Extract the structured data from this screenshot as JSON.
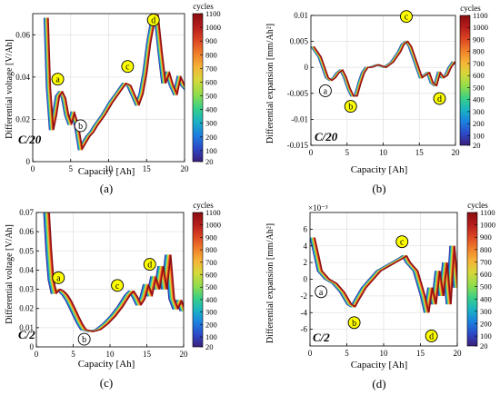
{
  "figure": {
    "cbar_title": "cycles",
    "cbar_ticks": [
      20,
      100,
      200,
      300,
      400,
      500,
      600,
      700,
      800,
      900,
      1000,
      1100
    ],
    "cycle_colors": [
      "#3b1f7a",
      "#2c49c8",
      "#1c7fe0",
      "#19b2c4",
      "#38cf88",
      "#8edd4c",
      "#d6d83a",
      "#f6b338",
      "#f07e2a",
      "#dc4522",
      "#b51d1c",
      "#8a0d10"
    ],
    "marker_fill": "#ffff00"
  },
  "chart_data": [
    {
      "type": "line",
      "panel_label": "(a)",
      "c_rate": "C/20",
      "xlabel": "Capacity [Ah]",
      "ylabel": "Differential voltage [V/Ah]",
      "xlim": [
        0,
        20
      ],
      "ylim": [
        0,
        0.07
      ],
      "xticks": [
        0,
        5,
        10,
        15,
        20
      ],
      "yticks": [
        0,
        0.02,
        0.04,
        0.06
      ],
      "ytick_labels": [
        "0",
        "0.02",
        "0.04",
        "0.06"
      ],
      "y_multiplier": "",
      "grid": true,
      "cycles": [
        20,
        100,
        200,
        300,
        400,
        500,
        600,
        700,
        800,
        900,
        1000,
        1100
      ],
      "base_curve": {
        "x": [
          1.5,
          1.8,
          2.2,
          2.6,
          3.0,
          3.4,
          3.8,
          4.2,
          4.6,
          5.0,
          5.5,
          6.0,
          6.5,
          7.0,
          7.5,
          8.0,
          9.0,
          10.0,
          11.0,
          11.8,
          12.4,
          13.0,
          13.5,
          14.0,
          14.5,
          15.0,
          15.5,
          16.0,
          16.5,
          17.0,
          17.5,
          18.0,
          18.5,
          19.0,
          19.5,
          20.0
        ],
        "y": [
          0.068,
          0.035,
          0.015,
          0.022,
          0.031,
          0.033,
          0.03,
          0.022,
          0.018,
          0.023,
          0.017,
          0.006,
          0.009,
          0.012,
          0.014,
          0.017,
          0.022,
          0.028,
          0.033,
          0.037,
          0.036,
          0.031,
          0.027,
          0.032,
          0.042,
          0.056,
          0.066,
          0.069,
          0.052,
          0.037,
          0.042,
          0.036,
          0.032,
          0.04,
          0.036,
          0.034
        ]
      },
      "x_shift_per_cycle": [
        0,
        0.05,
        0.1,
        0.15,
        0.2,
        0.25,
        0.3,
        0.35,
        0.4,
        0.45,
        0.5,
        0.55
      ],
      "markers": [
        {
          "label": "a",
          "x": 3.3,
          "y": 0.039,
          "filled": true
        },
        {
          "label": "b",
          "x": 6.3,
          "y": 0.017,
          "filled": false
        },
        {
          "label": "c",
          "x": 12.5,
          "y": 0.045,
          "filled": true
        },
        {
          "label": "d",
          "x": 15.9,
          "y": 0.067,
          "filled": true
        }
      ]
    },
    {
      "type": "line",
      "panel_label": "(b)",
      "c_rate": "C/20",
      "xlabel": "Capacity [Ah]",
      "ylabel": "Differential expansion [mm/Ah²]",
      "xlim": [
        0,
        20
      ],
      "ylim": [
        -0.015,
        0.01
      ],
      "xticks": [
        0,
        5,
        10,
        15,
        20
      ],
      "yticks": [
        -0.015,
        -0.01,
        -0.005,
        0,
        0.005,
        0.01
      ],
      "ytick_labels": [
        "-0.015",
        "-0.01",
        "-0.005",
        "0",
        "0.005",
        "0.01"
      ],
      "y_multiplier": "",
      "grid": true,
      "cycles": [
        20,
        100,
        200,
        300,
        400,
        500,
        600,
        700,
        800,
        900,
        1000,
        1100
      ],
      "base_curve": {
        "x": [
          0,
          0.5,
          1.0,
          1.5,
          2.0,
          2.5,
          3.0,
          3.5,
          4.0,
          4.5,
          5.0,
          5.5,
          6.0,
          6.5,
          7.0,
          7.5,
          8.0,
          9.0,
          10.0,
          11.0,
          12.0,
          12.5,
          13.0,
          13.5,
          14.0,
          15.0,
          16.0,
          16.5,
          17.0,
          17.5,
          18.0,
          18.5,
          19.0,
          19.5,
          20.0
        ],
        "y": [
          0.004,
          0.003,
          0.002,
          0.0,
          -0.002,
          -0.0025,
          -0.002,
          -0.001,
          -0.0005,
          -0.002,
          -0.004,
          -0.0055,
          -0.0055,
          -0.003,
          -0.001,
          0.0,
          0.0,
          0.0005,
          0.0,
          0.001,
          0.003,
          0.0045,
          0.005,
          0.004,
          0.002,
          -0.002,
          -0.001,
          -0.003,
          -0.0035,
          -0.001,
          -0.002,
          -0.0015,
          0.0,
          0.001,
          0.0005
        ]
      },
      "x_shift_per_cycle": [
        0,
        0.04,
        0.08,
        0.12,
        0.16,
        0.2,
        0.24,
        0.28,
        0.32,
        0.36,
        0.4,
        0.44
      ],
      "markers": [
        {
          "label": "a",
          "x": 2.0,
          "y": -0.0045,
          "filled": false
        },
        {
          "label": "b",
          "x": 5.5,
          "y": -0.0075,
          "filled": true
        },
        {
          "label": "c",
          "x": 13.2,
          "y": 0.0098,
          "filled": true
        },
        {
          "label": "d",
          "x": 17.8,
          "y": -0.006,
          "filled": true
        }
      ]
    },
    {
      "type": "line",
      "panel_label": "(c)",
      "c_rate": "C/2",
      "xlabel": "Capacity [Ah]",
      "ylabel": "Differential voltage [V/Ah]",
      "xlim": [
        0,
        20
      ],
      "ylim": [
        0,
        0.07
      ],
      "xticks": [
        0,
        5,
        10,
        15,
        20
      ],
      "yticks": [
        0,
        0.01,
        0.02,
        0.03,
        0.04,
        0.05,
        0.06,
        0.07
      ],
      "ytick_labels": [
        "0",
        "0.01",
        "0.02",
        "0.03",
        "0.04",
        "0.05",
        "0.06",
        "0.07"
      ],
      "y_multiplier": "",
      "grid": true,
      "cycles": [
        20,
        100,
        200,
        300,
        400,
        500,
        600,
        700,
        800,
        900,
        1000,
        1100
      ],
      "base_curve": {
        "x": [
          1.0,
          1.3,
          1.6,
          2.0,
          2.5,
          3.0,
          3.5,
          4.0,
          4.5,
          5.0,
          5.5,
          6.0,
          7.0,
          8.0,
          9.0,
          10.0,
          11.0,
          12.0,
          12.5,
          13.0,
          13.5,
          14.0,
          14.5,
          15.0,
          15.5,
          16.0,
          16.5,
          17.0,
          17.5,
          18.0,
          18.5,
          19.0,
          19.5,
          20.0
        ],
        "y": [
          0.07,
          0.05,
          0.035,
          0.028,
          0.03,
          0.029,
          0.027,
          0.024,
          0.02,
          0.016,
          0.012,
          0.009,
          0.008,
          0.009,
          0.012,
          0.016,
          0.021,
          0.027,
          0.029,
          0.026,
          0.022,
          0.025,
          0.032,
          0.027,
          0.036,
          0.03,
          0.042,
          0.03,
          0.048,
          0.025,
          0.02,
          0.024,
          0.019,
          0.022
        ]
      },
      "x_shift_per_cycle": [
        0,
        0.07,
        0.14,
        0.21,
        0.28,
        0.35,
        0.42,
        0.49,
        0.56,
        0.63,
        0.7,
        0.77
      ],
      "markers": [
        {
          "label": "a",
          "x": 3.0,
          "y": 0.036,
          "filled": true
        },
        {
          "label": "b",
          "x": 6.5,
          "y": 0.004,
          "filled": false
        },
        {
          "label": "c",
          "x": 11.0,
          "y": 0.032,
          "filled": true
        },
        {
          "label": "d",
          "x": 15.4,
          "y": 0.043,
          "filled": true
        }
      ]
    },
    {
      "type": "line",
      "panel_label": "(d)",
      "c_rate": "C/2",
      "xlabel": "Capacity [Ah]",
      "ylabel": "Differential expansion [mm/Ah²]",
      "xlim": [
        0,
        20
      ],
      "ylim": [
        -0.008,
        0.008
      ],
      "xticks": [
        0,
        5,
        10,
        15,
        20
      ],
      "yticks": [
        -0.006,
        -0.004,
        -0.002,
        0,
        0.002,
        0.004,
        0.006
      ],
      "ytick_labels": [
        "-6",
        "-4",
        "-2",
        "0",
        "2",
        "4",
        "6"
      ],
      "y_multiplier": "×10⁻³",
      "grid": true,
      "cycles": [
        20,
        100,
        200,
        300,
        400,
        500,
        600,
        700,
        800,
        900,
        1000,
        1100
      ],
      "base_curve": {
        "x": [
          0,
          0.5,
          1.0,
          2.0,
          3.0,
          4.0,
          5.0,
          5.5,
          6.0,
          7.0,
          8.0,
          9.0,
          10.0,
          11.0,
          12.0,
          12.5,
          13.0,
          14.0,
          15.0,
          15.5,
          16.0,
          16.5,
          17.0,
          17.5,
          18.0,
          18.5,
          19.0,
          19.5,
          20.0
        ],
        "y": [
          0.005,
          0.003,
          0.001,
          0.0,
          -0.0005,
          -0.0015,
          -0.003,
          -0.0033,
          -0.0025,
          -0.001,
          0.0,
          0.001,
          0.0015,
          0.002,
          0.0025,
          0.0028,
          0.002,
          0.001,
          -0.002,
          -0.004,
          -0.001,
          -0.003,
          0.001,
          -0.002,
          0.002,
          -0.003,
          0.004,
          -0.001,
          0.001
        ]
      },
      "x_shift_per_cycle": [
        0,
        0.06,
        0.12,
        0.18,
        0.24,
        0.3,
        0.36,
        0.42,
        0.48,
        0.54,
        0.6,
        0.66
      ],
      "markers": [
        {
          "label": "a",
          "x": 1.5,
          "y": -0.0015,
          "filled": false
        },
        {
          "label": "b",
          "x": 6.0,
          "y": -0.0052,
          "filled": true
        },
        {
          "label": "c",
          "x": 12.5,
          "y": 0.0045,
          "filled": true
        },
        {
          "label": "d",
          "x": 16.5,
          "y": -0.0068,
          "filled": true
        }
      ]
    }
  ]
}
